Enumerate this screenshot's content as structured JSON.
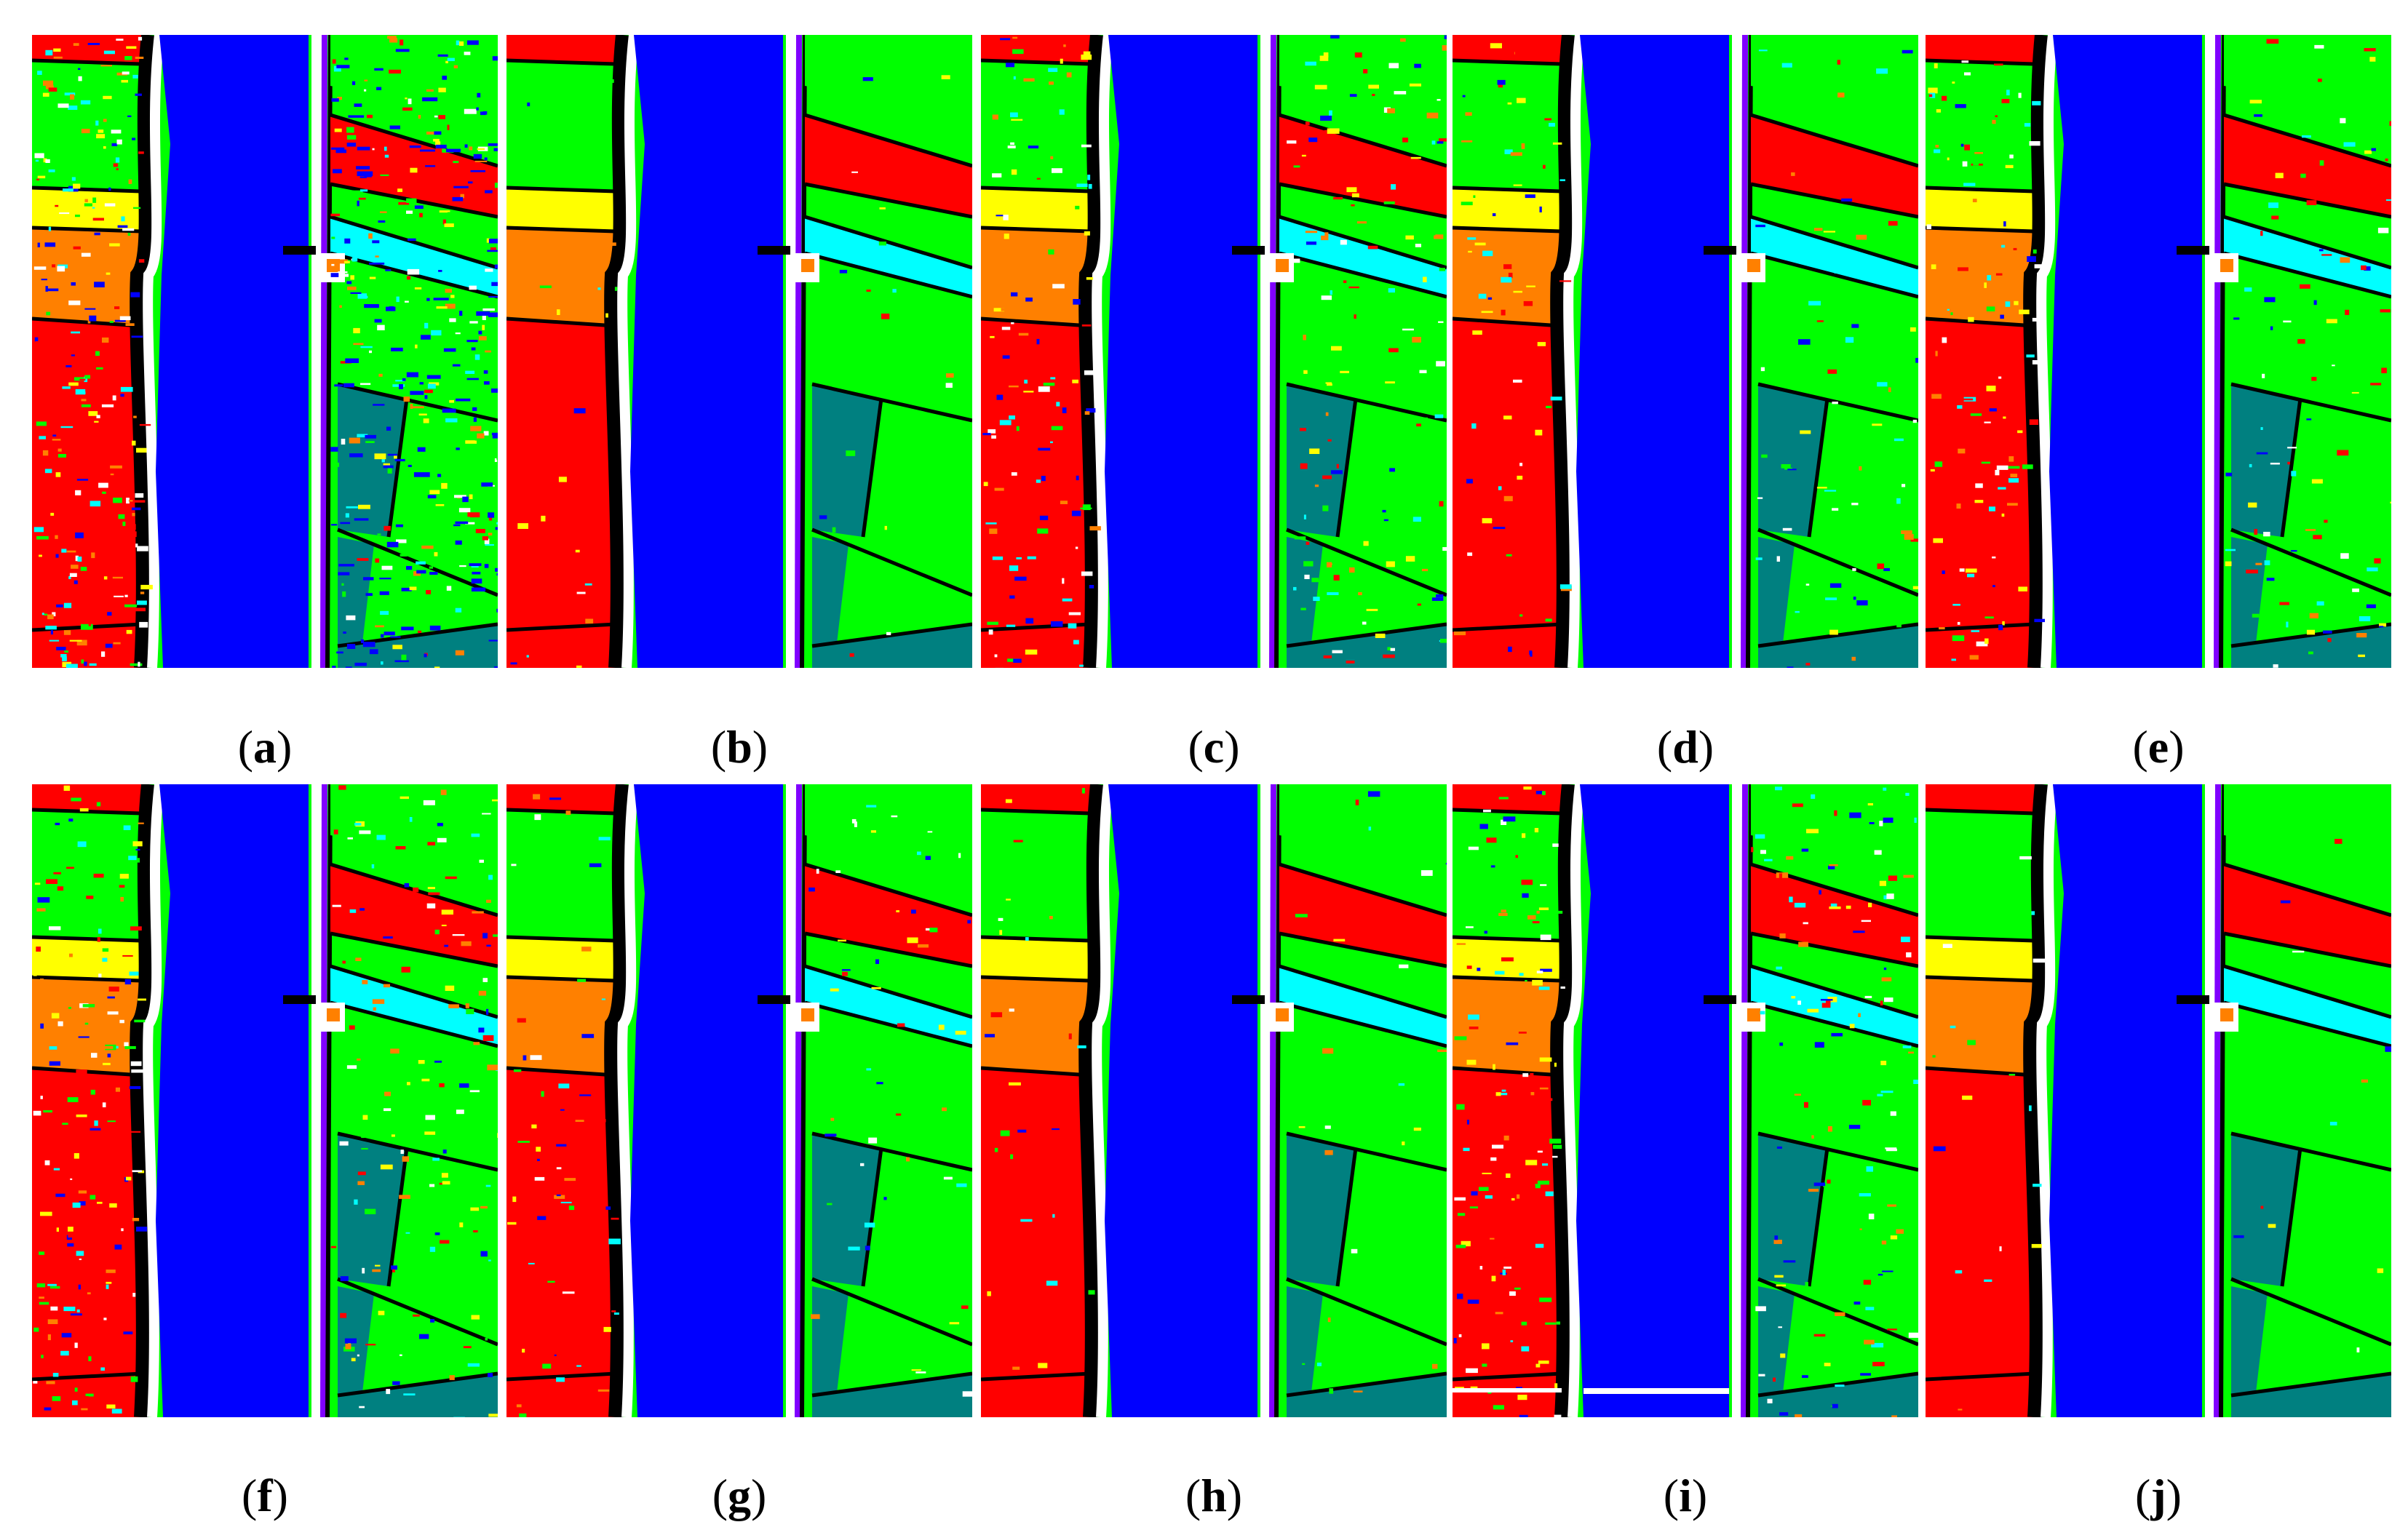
{
  "figure": {
    "panels": [
      {
        "label": "a",
        "noise": 0.55,
        "bank_noise": "blue"
      },
      {
        "label": "b",
        "noise": 0.05,
        "bank_noise": "none"
      },
      {
        "label": "c",
        "noise": 0.3,
        "bank_noise": "none"
      },
      {
        "label": "d",
        "noise": 0.15,
        "bank_noise": "none"
      },
      {
        "label": "e",
        "noise": 0.25,
        "bank_noise": "none"
      },
      {
        "label": "f",
        "noise": 0.35,
        "bank_noise": "none"
      },
      {
        "label": "g",
        "noise": 0.12,
        "bank_noise": "none"
      },
      {
        "label": "h",
        "noise": 0.06,
        "bank_noise": "none"
      },
      {
        "label": "i",
        "noise": 0.3,
        "bank_noise": "white-stripe"
      },
      {
        "label": "j",
        "noise": 0.04,
        "bank_noise": "none"
      }
    ],
    "class_colors": {
      "water": "#0000ff",
      "crop_red": "#ff0000",
      "crop_green": "#00ff00",
      "yellow": "#ffff00",
      "orange": "#ff8000",
      "cyan": "#00ffff",
      "teal": "#008080",
      "purple": "#8000ff",
      "white": "#ffffff",
      "black": "#000000"
    }
  }
}
